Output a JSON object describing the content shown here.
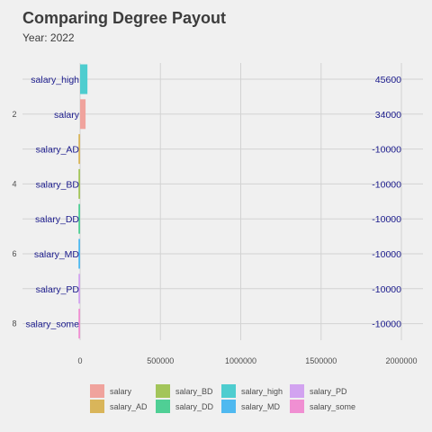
{
  "chart_data": {
    "type": "bar",
    "orientation": "horizontal",
    "title": "Comparing Degree Payout",
    "subtitle": "Year: 2022",
    "xlabel": "",
    "ylabel": "",
    "xlim": [
      0,
      2000000
    ],
    "x_ticks": [
      0,
      500000,
      1000000,
      1500000,
      2000000
    ],
    "x_tick_labels": [
      "0",
      "500000",
      "1000000",
      "1500000",
      "2000000"
    ],
    "y_ticks": [
      2,
      4,
      6,
      8
    ],
    "y_tick_labels": [
      "2",
      "4",
      "6",
      "8"
    ],
    "grid": true,
    "legend_position": "bottom",
    "bars": [
      {
        "rank": 1,
        "label": "salary_high",
        "value": 45600,
        "value_label": "45600",
        "color": "#4ecdcf"
      },
      {
        "rank": 2,
        "label": "salary",
        "value": 34000,
        "value_label": "34000",
        "color": "#f0a39d"
      },
      {
        "rank": 3,
        "label": "salary_AD",
        "value": -10000,
        "value_label": "-10000",
        "color": "#d9b55a"
      },
      {
        "rank": 4,
        "label": "salary_BD",
        "value": -10000,
        "value_label": "-10000",
        "color": "#a3c55a"
      },
      {
        "rank": 5,
        "label": "salary_DD",
        "value": -10000,
        "value_label": "-10000",
        "color": "#4fcf95"
      },
      {
        "rank": 6,
        "label": "salary_MD",
        "value": -10000,
        "value_label": "-10000",
        "color": "#4fb9f0"
      },
      {
        "rank": 7,
        "label": "salary_PD",
        "value": -10000,
        "value_label": "-10000",
        "color": "#d2a3f0"
      },
      {
        "rank": 8,
        "label": "salary_some",
        "value": -10000,
        "value_label": "-10000",
        "color": "#f08fd2"
      }
    ],
    "legend": [
      {
        "label": "salary",
        "color": "#f0a39d"
      },
      {
        "label": "salary_AD",
        "color": "#d9b55a"
      },
      {
        "label": "salary_BD",
        "color": "#a3c55a"
      },
      {
        "label": "salary_DD",
        "color": "#4fcf95"
      },
      {
        "label": "salary_high",
        "color": "#4ecdcf"
      },
      {
        "label": "salary_MD",
        "color": "#4fb9f0"
      },
      {
        "label": "salary_PD",
        "color": "#d2a3f0"
      },
      {
        "label": "salary_some",
        "color": "#f08fd2"
      }
    ]
  }
}
